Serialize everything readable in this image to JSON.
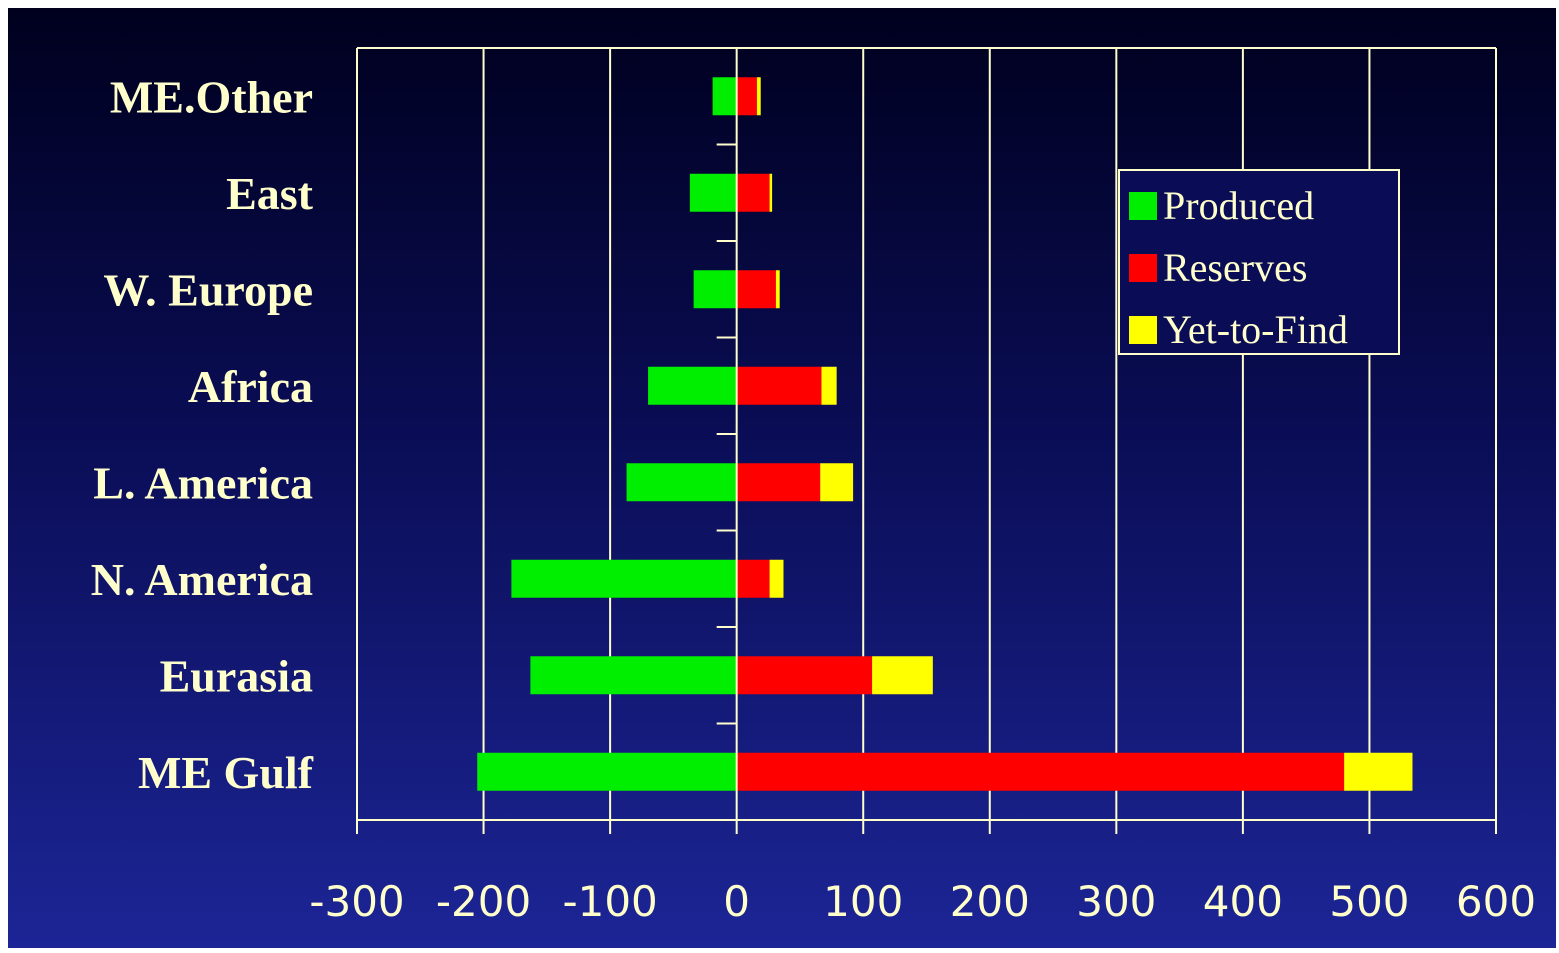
{
  "chart_data": {
    "type": "bar",
    "orientation": "horizontal",
    "stacked": true,
    "categories": [
      "ME Gulf",
      "Eurasia",
      "N. America",
      "L. America",
      "Africa",
      "W. Europe",
      "East",
      "ME.Other"
    ],
    "series": [
      {
        "name": "Produced",
        "color": "#00ee00",
        "values": [
          -205,
          -163,
          -178,
          -87,
          -70,
          -34,
          -37,
          -19
        ]
      },
      {
        "name": "Reserves",
        "color": "#ff0000",
        "values": [
          480,
          107,
          26,
          66,
          67,
          31,
          26,
          16
        ]
      },
      {
        "name": "Yet-to-Find",
        "color": "#ffff00",
        "values": [
          54,
          48,
          11,
          26,
          12,
          3,
          2,
          3
        ]
      }
    ],
    "xlim": [
      -300,
      600
    ],
    "xticks": [
      -300,
      -200,
      -100,
      0,
      100,
      200,
      300,
      400,
      500,
      600
    ],
    "grid": true,
    "legend_position": "top-right",
    "title": "",
    "xlabel": "",
    "ylabel": "",
    "colors": {
      "grid": "#ffffcc",
      "text": "#ffffcc",
      "background_top": "#00001e",
      "background_bottom": "#1c2596"
    }
  }
}
